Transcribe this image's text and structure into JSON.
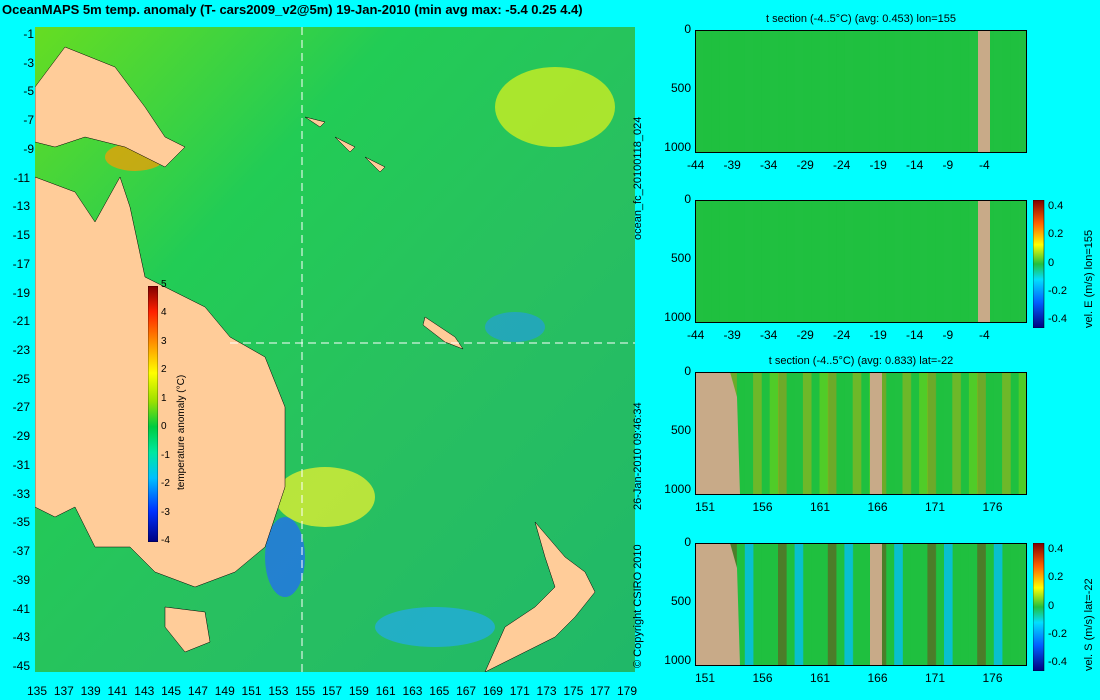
{
  "title": "OceanMAPS 5m temp. anomaly (T- cars2009_v2@5m) 19-Jan-2010 (min avg max: -5.4 0.25 4.4)",
  "map": {
    "lat_ticks": [
      "-1",
      "-3",
      "-5",
      "-7",
      "-9",
      "-11",
      "-13",
      "-15",
      "-17",
      "-19",
      "-21",
      "-23",
      "-25",
      "-27",
      "-29",
      "-31",
      "-33",
      "-35",
      "-37",
      "-39",
      "-41",
      "-43",
      "-45"
    ],
    "lon_ticks": [
      "135",
      "137",
      "139",
      "141",
      "143",
      "145",
      "147",
      "149",
      "151",
      "153",
      "155",
      "157",
      "159",
      "161",
      "163",
      "165",
      "167",
      "169",
      "171",
      "173",
      "175",
      "177",
      "179"
    ],
    "colorbar": {
      "ticks": [
        "5",
        "4",
        "3",
        "2",
        "1",
        "0",
        "-1",
        "-2",
        "-3",
        "-4"
      ],
      "label": "temperature anomaly (°C)",
      "colors": [
        "#000080",
        "#0030ff",
        "#00c0ff",
        "#00e8a0",
        "#00cc40",
        "#9ce000",
        "#ffff00",
        "#ff9000",
        "#ff2000",
        "#800000"
      ]
    },
    "ocean_color": "#22c84a",
    "land_color": "#ffcc99",
    "crosshair_lon": "155",
    "crosshair_lat": "-22"
  },
  "panels": [
    {
      "title": "t section (-4..5°C) (avg: 0.453) lon=155",
      "y_ticks": [
        "0",
        "500",
        "1000"
      ],
      "x_ticks": [
        "-44",
        "-39",
        "-34",
        "-29",
        "-24",
        "-19",
        "-14",
        "-9",
        "-4"
      ]
    },
    {
      "title": "",
      "y_ticks": [
        "0",
        "500",
        "1000"
      ],
      "x_ticks": [
        "-44",
        "-39",
        "-34",
        "-29",
        "-24",
        "-19",
        "-14",
        "-9",
        "-4"
      ],
      "colorbar_ticks": [
        "0.4",
        "0.2",
        "0",
        "-0.2",
        "-0.4"
      ],
      "colorbar_label": "vel. E (m/s) lon=155"
    },
    {
      "title": "t section (-4..5°C) (avg: 0.833) lat=-22",
      "y_ticks": [
        "0",
        "500",
        "1000"
      ],
      "x_ticks": [
        "151",
        "156",
        "161",
        "166",
        "171",
        "176"
      ]
    },
    {
      "title": "",
      "y_ticks": [
        "0",
        "500",
        "1000"
      ],
      "x_ticks": [
        "151",
        "156",
        "161",
        "166",
        "171",
        "176"
      ],
      "colorbar_ticks": [
        "0.4",
        "0.2",
        "0",
        "-0.2",
        "-0.4"
      ],
      "colorbar_label": "vel. S (m/s) lat=-22"
    }
  ],
  "side_labels": {
    "run_id": "ocean_fc_20100118_024",
    "timestamp": "26-Jan-2010 09:46:34",
    "copyright": "© Copyright CSIRO 2010"
  }
}
